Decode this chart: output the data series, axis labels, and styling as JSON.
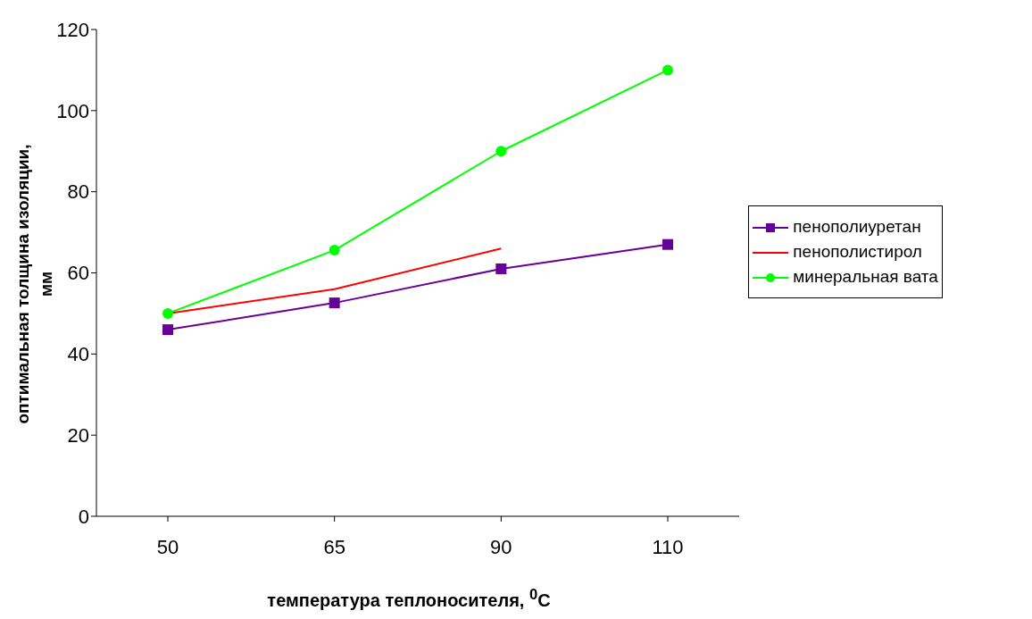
{
  "chart_data": {
    "type": "line",
    "xlabel": "температура теплоносителя, $^{0}$С",
    "ylabel": "оптимальная толщина изоляции,\nмм",
    "categories": [
      "50",
      "65",
      "90",
      "110"
    ],
    "series": [
      {
        "name": "пенополиуретан",
        "color": "#660099",
        "marker": "square",
        "values": [
          46,
          52.6,
          61,
          67
        ]
      },
      {
        "name": "пенополистирол",
        "color": "#ff0000",
        "marker": "none",
        "values": [
          50,
          56,
          66,
          null
        ]
      },
      {
        "name": "минеральная вата",
        "color": "#00ff00",
        "marker": "circle",
        "values": [
          50,
          65.6,
          90,
          110
        ]
      }
    ],
    "ylim": [
      0,
      120
    ],
    "yticks": [
      0,
      20,
      40,
      60,
      80,
      100,
      120
    ],
    "grid": false,
    "legend": "right"
  }
}
